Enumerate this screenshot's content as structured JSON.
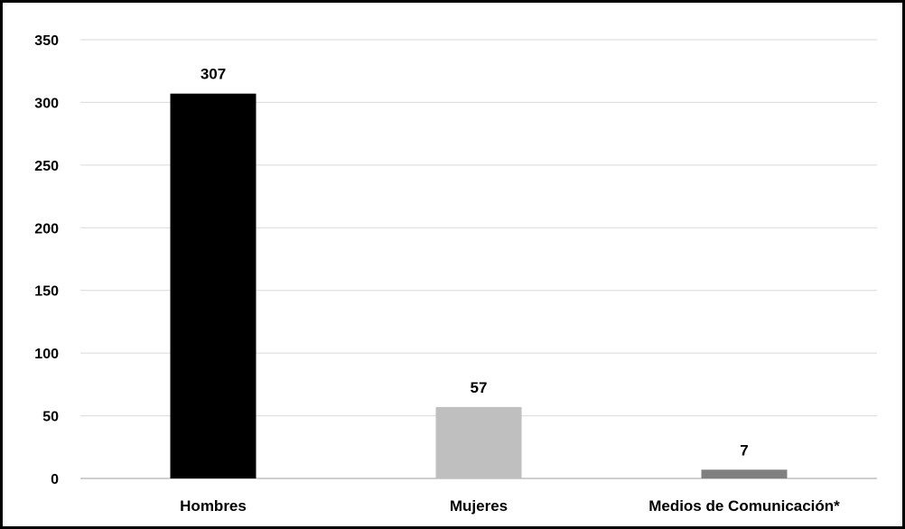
{
  "chart_data": {
    "type": "bar",
    "title": "",
    "xlabel": "",
    "ylabel": "",
    "categories": [
      "Hombres",
      "Mujeres",
      "Medios de Comunicación*"
    ],
    "values": [
      307,
      57,
      7
    ],
    "data_labels": [
      "307",
      "57",
      "7"
    ],
    "bar_colors": [
      "#000000",
      "#bfbfbf",
      "#808080"
    ],
    "ylim": [
      0,
      350
    ],
    "y_ticks": [
      0,
      50,
      100,
      150,
      200,
      250,
      300,
      350
    ],
    "y_tick_labels": [
      "0",
      "50",
      "100",
      "150",
      "200",
      "250",
      "300",
      "350"
    ],
    "grid": true,
    "legend": "none"
  }
}
